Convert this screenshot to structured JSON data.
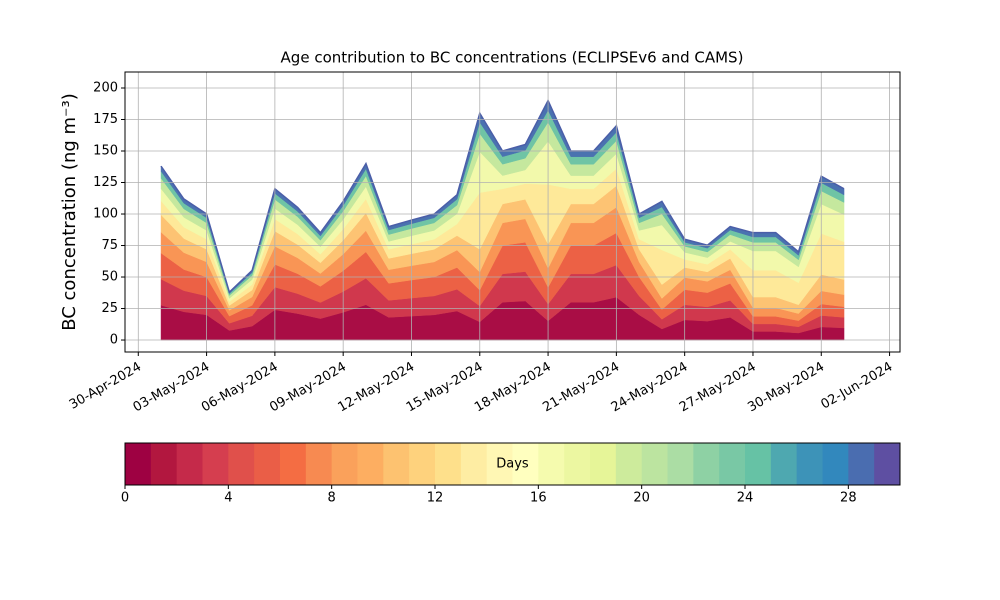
{
  "chart_data": {
    "type": "stacked_area",
    "title": "Age contribution to BC concentrations (ECLIPSEv6 and CAMS)",
    "ylabel": "BC concentration (ng m⁻³)",
    "x": [
      "2024-05-01",
      "2024-05-02",
      "2024-05-03",
      "2024-05-04",
      "2024-05-05",
      "2024-05-06",
      "2024-05-07",
      "2024-05-08",
      "2024-05-09",
      "2024-05-10",
      "2024-05-11",
      "2024-05-12",
      "2024-05-13",
      "2024-05-14",
      "2024-05-15",
      "2024-05-16",
      "2024-05-17",
      "2024-05-18",
      "2024-05-19",
      "2024-05-20",
      "2024-05-21",
      "2024-05-22",
      "2024-05-23",
      "2024-05-24",
      "2024-05-25",
      "2024-05-26",
      "2024-05-27",
      "2024-05-28",
      "2024-05-29",
      "2024-05-30",
      "2024-05-31"
    ],
    "series": [
      {
        "color": "#a90d45",
        "values": [
          27.6,
          22.4,
          20,
          7.6,
          11,
          24,
          21,
          17,
          22,
          28,
          18,
          19,
          20,
          23,
          14.4,
          30,
          31,
          15.2,
          30,
          30,
          34,
          20,
          8.8,
          16,
          15,
          18,
          6.8,
          6.8,
          5.6,
          10.4,
          9.6
        ]
      },
      {
        "color": "#d0384d",
        "values": [
          20.7,
          16.8,
          15,
          5.7,
          8.3,
          18,
          15.8,
          12.8,
          16.5,
          21,
          13.5,
          14.3,
          15,
          17.3,
          12.6,
          22.5,
          23.3,
          13.3,
          22.5,
          22.5,
          25.5,
          15,
          7.7,
          12,
          11.3,
          13.5,
          6,
          6,
          4.9,
          9.1,
          8.4
        ]
      },
      {
        "color": "#ec6145",
        "values": [
          20.7,
          16.8,
          15,
          5.7,
          8.3,
          18,
          15.8,
          12.8,
          16.5,
          21,
          13.5,
          14.3,
          15,
          17.3,
          12.6,
          22.5,
          23.3,
          13.3,
          22.5,
          22.5,
          25.5,
          15,
          7.7,
          12,
          11.3,
          13.5,
          6,
          6,
          4.9,
          9.1,
          8.4
        ]
      },
      {
        "color": "#f99555",
        "values": [
          16.6,
          13.4,
          12,
          4.6,
          6.6,
          14.4,
          12.6,
          10.2,
          13.2,
          16.8,
          10.8,
          11.4,
          12,
          13.8,
          14.4,
          18,
          18.6,
          15.2,
          18,
          18,
          20.4,
          12,
          8.8,
          9.6,
          9,
          10.8,
          6.8,
          6.8,
          5.6,
          10.4,
          9.6
        ]
      },
      {
        "color": "#fdc373",
        "values": [
          13.8,
          11.2,
          10,
          3.8,
          5.5,
          12,
          10.5,
          8.5,
          11,
          14,
          9,
          9.5,
          10,
          11.5,
          18,
          15,
          15.5,
          19,
          15,
          15,
          17,
          10,
          11,
          8,
          7.5,
          9,
          8.5,
          8.5,
          7,
          13,
          12
        ]
      },
      {
        "color": "#fee999",
        "values": [
          11,
          9,
          8,
          3,
          4.4,
          9.6,
          8.4,
          6.8,
          8.8,
          11.2,
          7.2,
          7.6,
          8,
          9.2,
          45,
          12,
          12.4,
          47.5,
          12,
          12,
          13.6,
          8,
          27.5,
          6.4,
          6,
          7.2,
          21.3,
          21.3,
          17.5,
          32.5,
          30
        ]
      },
      {
        "color": "#f2f9ab",
        "values": [
          9.7,
          7.8,
          7,
          2.7,
          3.9,
          8.4,
          7.4,
          6,
          7.7,
          9.8,
          6.3,
          6.7,
          7,
          8.1,
          32.4,
          10.5,
          10.9,
          34.2,
          10.5,
          10.5,
          11.9,
          7,
          19.8,
          5.6,
          5.3,
          6.3,
          15.3,
          15.3,
          12.6,
          23.4,
          21.6
        ]
      },
      {
        "color": "#c5e89e",
        "values": [
          8.3,
          6.7,
          6,
          2.3,
          3.3,
          7.2,
          6.3,
          5.1,
          6.6,
          8.4,
          5.4,
          5.7,
          6,
          6.9,
          14.4,
          9,
          9.3,
          15.2,
          9,
          9,
          10.2,
          6,
          8.8,
          4.8,
          4.5,
          5.4,
          6.8,
          6.8,
          5.6,
          10.4,
          9.6
        ]
      },
      {
        "color": "#6fc4a5",
        "values": [
          5.5,
          4.5,
          4,
          1.5,
          2.2,
          4.8,
          4.2,
          3.4,
          4.4,
          5.6,
          3.6,
          3.8,
          4,
          4.6,
          9,
          6,
          6.2,
          9.5,
          6,
          6,
          6.8,
          4,
          5.5,
          3.2,
          3,
          3.6,
          4.3,
          4.3,
          3.5,
          6.5,
          6
        ]
      },
      {
        "color": "#4a72b0",
        "values": [
          4.1,
          3.4,
          3,
          1.1,
          1.7,
          3.6,
          3.2,
          2.6,
          3.3,
          4.2,
          2.7,
          2.9,
          3,
          3.5,
          7.2,
          4.5,
          4.7,
          7.6,
          4.5,
          4.5,
          5.1,
          3,
          4.4,
          2.4,
          2.3,
          2.7,
          3.4,
          3.4,
          2.8,
          5.2,
          4.8
        ]
      }
    ],
    "outline_color": "#4b5ea8",
    "xlim": [
      "2024-04-29T10:00",
      "2024-06-02T11:00"
    ],
    "xticks": [
      {
        "value": "2024-04-30",
        "label": "30-Apr-2024"
      },
      {
        "value": "2024-05-03",
        "label": "03-May-2024"
      },
      {
        "value": "2024-05-06",
        "label": "06-May-2024"
      },
      {
        "value": "2024-05-09",
        "label": "09-May-2024"
      },
      {
        "value": "2024-05-12",
        "label": "12-May-2024"
      },
      {
        "value": "2024-05-15",
        "label": "15-May-2024"
      },
      {
        "value": "2024-05-18",
        "label": "18-May-2024"
      },
      {
        "value": "2024-05-21",
        "label": "21-May-2024"
      },
      {
        "value": "2024-05-24",
        "label": "24-May-2024"
      },
      {
        "value": "2024-05-27",
        "label": "27-May-2024"
      },
      {
        "value": "2024-05-30",
        "label": "30-May-2024"
      },
      {
        "value": "2024-06-02",
        "label": "02-Jun-2024"
      }
    ],
    "ylim": [
      -9.5,
      212.7
    ],
    "yticks": [
      0,
      25,
      50,
      75,
      100,
      125,
      150,
      175,
      200
    ],
    "grid": true,
    "colorbar": {
      "label": "Days",
      "lim": [
        0,
        30
      ],
      "ticks": [
        0,
        4,
        8,
        12,
        16,
        20,
        24,
        28
      ],
      "colors": [
        "#9e0142",
        "#b2173f",
        "#c52a4a",
        "#d53e4f",
        "#e0504b",
        "#ea5e47",
        "#f46d43",
        "#f78a51",
        "#faa15b",
        "#fdae61",
        "#fdc270",
        "#fed27d",
        "#fee08b",
        "#feeda3",
        "#fff7b4",
        "#ffffbf",
        "#f5fbae",
        "#ecf7a1",
        "#e6f598",
        "#cdeb9c",
        "#bce4a0",
        "#abdda4",
        "#8ed1a4",
        "#79c8a5",
        "#66c2a5",
        "#4ea8b0",
        "#3d93b8",
        "#3288bd",
        "#4a6db0",
        "#5e4fa2"
      ]
    }
  }
}
